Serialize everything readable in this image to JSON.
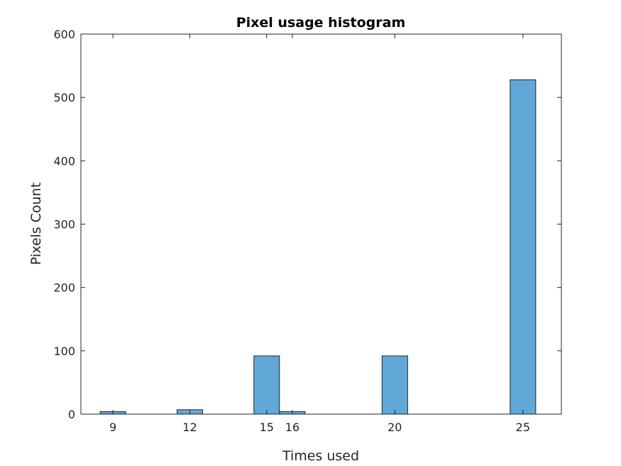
{
  "chart_data": {
    "type": "bar",
    "title": "Pixel usage histogram",
    "xlabel": "Times used",
    "ylabel": "Pixels Count",
    "x_ticks": [
      9,
      12,
      15,
      16,
      20,
      25
    ],
    "y_ticks": [
      0,
      100,
      200,
      300,
      400,
      500,
      600
    ],
    "xlim": [
      7.75,
      26.5
    ],
    "ylim": [
      0,
      600
    ],
    "bin_width": 1,
    "bins": [
      {
        "center": 9,
        "value": 4
      },
      {
        "center": 12,
        "value": 7
      },
      {
        "center": 15,
        "value": 92
      },
      {
        "center": 16,
        "value": 4
      },
      {
        "center": 20,
        "value": 92
      },
      {
        "center": 25,
        "value": 528
      }
    ],
    "bar_color": "#61A7D7",
    "bar_edge_color": "#000000",
    "grid": false
  }
}
